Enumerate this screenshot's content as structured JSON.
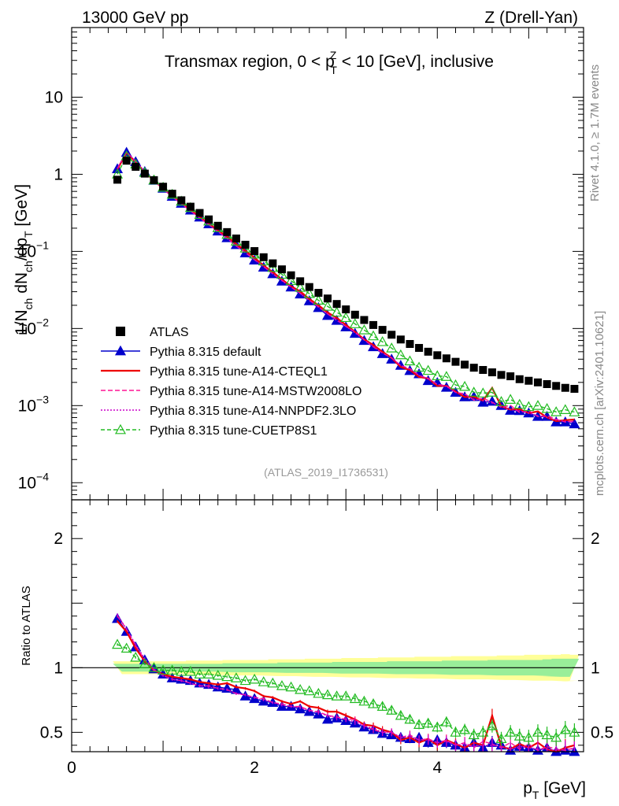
{
  "header": {
    "left": "13000 GeV pp",
    "right": "Z (Drell-Yan)"
  },
  "side_labels": {
    "rivet": "Rivet 4.1.0, ≥ 1.7M events",
    "mcplots": "mcplots.cern.ch [arXiv:2401.10621]"
  },
  "chart_data": {
    "type": "line",
    "title_main": "Transmax region, 0 < p",
    "title_sup": "Z",
    "title_sub": "T",
    "title_tail": " < 10 [GeV], inclusive",
    "analysis_tag": "(ATLAS_2019_I1736531)",
    "xlabel": "p",
    "xlabel_sub": "T",
    "xlabel_tail": " [GeV]",
    "ylabel_prefix": "1/N",
    "ylabel_sub1": "ch",
    "ylabel_mid": " dN",
    "ylabel_sub2": "ch",
    "ylabel_mid2": "/dp",
    "ylabel_sub3": "T",
    "ylabel_tail": " [GeV]",
    "ratio_ylabel": "Ratio to ATLAS",
    "xlim": [
      0,
      5.6
    ],
    "ylim_main": [
      6e-05,
      80
    ],
    "ylim_ratio": [
      0.35,
      2.3
    ],
    "x_ticks": [
      "0",
      "2",
      "4"
    ],
    "x_tick_values": [
      0,
      2,
      4
    ],
    "y_ticks_main": [
      {
        "base": "10",
        "exp": "",
        "value": 10
      },
      {
        "base": "1",
        "exp": "",
        "value": 1
      },
      {
        "base": "10",
        "exp": "−1",
        "value": 0.1
      },
      {
        "base": "10",
        "exp": "−2",
        "value": 0.01
      },
      {
        "base": "10",
        "exp": "−3",
        "value": 0.001
      },
      {
        "base": "10",
        "exp": "−4",
        "value": 0.0001
      }
    ],
    "y_ticks_ratio": [
      "0.5",
      "1",
      "2"
    ],
    "y_tick_values_ratio": [
      0.5,
      1,
      2
    ],
    "x": [
      0.5,
      0.6,
      0.7,
      0.8,
      0.9,
      1.0,
      1.1,
      1.2,
      1.3,
      1.4,
      1.5,
      1.6,
      1.7,
      1.8,
      1.9,
      2.0,
      2.1,
      2.2,
      2.3,
      2.4,
      2.5,
      2.6,
      2.7,
      2.8,
      2.9,
      3.0,
      3.1,
      3.2,
      3.3,
      3.4,
      3.5,
      3.6,
      3.7,
      3.8,
      3.9,
      4.0,
      4.1,
      4.2,
      4.3,
      4.4,
      4.5,
      4.6,
      4.7,
      4.8,
      4.9,
      5.0,
      5.1,
      5.2,
      5.3,
      5.4,
      5.5
    ],
    "atlas": [
      0.85,
      1.5,
      1.25,
      1.02,
      0.84,
      0.69,
      0.56,
      0.46,
      0.38,
      0.315,
      0.26,
      0.215,
      0.178,
      0.147,
      0.122,
      0.101,
      0.084,
      0.07,
      0.0585,
      0.049,
      0.041,
      0.0345,
      0.029,
      0.0245,
      0.0208,
      0.0177,
      0.0151,
      0.0129,
      0.0111,
      0.0096,
      0.0083,
      0.0072,
      0.0063,
      0.0056,
      0.005,
      0.0045,
      0.0041,
      0.0037,
      0.0034,
      0.0031,
      0.0029,
      0.0027,
      0.0025,
      0.0024,
      0.0022,
      0.0021,
      0.002,
      0.0019,
      0.0018,
      0.0017,
      0.00165
    ],
    "ratio_band_inner": [
      0.03,
      0.03,
      0.03,
      0.03,
      0.03,
      0.03,
      0.03,
      0.03,
      0.03,
      0.03,
      0.03,
      0.03,
      0.035,
      0.035,
      0.035,
      0.035,
      0.035,
      0.035,
      0.04,
      0.04,
      0.04,
      0.04,
      0.04,
      0.04,
      0.045,
      0.045,
      0.045,
      0.045,
      0.045,
      0.045,
      0.05,
      0.05,
      0.05,
      0.05,
      0.05,
      0.05,
      0.055,
      0.055,
      0.055,
      0.055,
      0.055,
      0.06,
      0.06,
      0.06,
      0.06,
      0.06,
      0.06,
      0.065,
      0.07,
      0.07,
      0.07
    ],
    "ratio_band_outer": [
      0.05,
      0.05,
      0.05,
      0.05,
      0.05,
      0.05,
      0.05,
      0.05,
      0.055,
      0.055,
      0.055,
      0.055,
      0.06,
      0.06,
      0.06,
      0.06,
      0.06,
      0.065,
      0.065,
      0.065,
      0.065,
      0.07,
      0.07,
      0.07,
      0.07,
      0.075,
      0.075,
      0.075,
      0.075,
      0.08,
      0.08,
      0.08,
      0.08,
      0.085,
      0.085,
      0.085,
      0.085,
      0.09,
      0.09,
      0.09,
      0.09,
      0.09,
      0.095,
      0.095,
      0.095,
      0.1,
      0.1,
      0.1,
      0.1,
      0.105,
      0.1
    ],
    "series": [
      {
        "name": "Pythia 8.315 default",
        "color": "#0000cc",
        "dash": "",
        "marker": "triangle-filled",
        "ratio": [
          1.38,
          1.28,
          1.16,
          1.06,
          0.99,
          0.95,
          0.92,
          0.91,
          0.9,
          0.88,
          0.87,
          0.85,
          0.84,
          0.83,
          0.78,
          0.76,
          0.74,
          0.73,
          0.7,
          0.7,
          0.68,
          0.66,
          0.64,
          0.6,
          0.61,
          0.59,
          0.57,
          0.54,
          0.52,
          0.49,
          0.48,
          0.46,
          0.45,
          0.46,
          0.42,
          0.44,
          0.42,
          0.4,
          0.38,
          0.42,
          0.38,
          0.42,
          0.4,
          0.36,
          0.39,
          0.38,
          0.36,
          0.38,
          0.34,
          0.36,
          0.35
        ]
      },
      {
        "name": "Pythia 8.315 tune-A14-CTEQL1",
        "color": "#ee0000",
        "dash": "",
        "marker": "none",
        "ratio": [
          1.36,
          1.28,
          1.15,
          1.05,
          0.98,
          0.95,
          0.93,
          0.92,
          0.91,
          0.89,
          0.88,
          0.87,
          0.88,
          0.85,
          0.84,
          0.82,
          0.78,
          0.77,
          0.74,
          0.72,
          0.74,
          0.7,
          0.69,
          0.66,
          0.66,
          0.63,
          0.6,
          0.56,
          0.55,
          0.52,
          0.5,
          0.44,
          0.46,
          0.42,
          0.45,
          0.4,
          0.44,
          0.41,
          0.38,
          0.42,
          0.4,
          0.63,
          0.39,
          0.37,
          0.41,
          0.38,
          0.42,
          0.37,
          0.35,
          0.38,
          0.4
        ]
      },
      {
        "name": "Pythia 8.315 tune-A14-MSTW2008LO",
        "color": "#ff1493",
        "dash": "6,3",
        "marker": "none",
        "ratio": [
          1.4,
          1.3,
          1.17,
          1.06,
          0.98,
          0.94,
          0.91,
          0.9,
          0.88,
          0.86,
          0.86,
          0.84,
          0.83,
          0.8,
          0.79,
          0.77,
          0.76,
          0.73,
          0.72,
          0.7,
          0.7,
          0.67,
          0.66,
          0.63,
          0.62,
          0.6,
          0.6,
          0.55,
          0.52,
          0.5,
          0.5,
          0.46,
          0.48,
          0.44,
          0.45,
          0.42,
          0.44,
          0.4,
          0.42,
          0.38,
          0.43,
          0.41,
          0.38,
          0.42,
          0.37,
          0.41,
          0.36,
          0.39,
          0.37,
          0.36,
          0.38
        ]
      },
      {
        "name": "Pythia 8.315 tune-A14-NNPDF2.3LO",
        "color": "#cc00cc",
        "dash": "2,2",
        "marker": "none",
        "ratio": [
          1.41,
          1.3,
          1.18,
          1.07,
          0.99,
          0.94,
          0.91,
          0.9,
          0.88,
          0.86,
          0.85,
          0.84,
          0.83,
          0.8,
          0.79,
          0.77,
          0.75,
          0.73,
          0.71,
          0.7,
          0.69,
          0.67,
          0.65,
          0.63,
          0.61,
          0.6,
          0.58,
          0.55,
          0.53,
          0.5,
          0.5,
          0.46,
          0.47,
          0.44,
          0.44,
          0.42,
          0.43,
          0.4,
          0.41,
          0.39,
          0.4,
          0.4,
          0.39,
          0.37,
          0.39,
          0.38,
          0.37,
          0.37,
          0.36,
          0.37,
          0.37
        ]
      },
      {
        "name": "Pythia 8.315 tune-CUETP8S1",
        "color": "#22bb22",
        "dash": "5,3",
        "marker": "triangle-open",
        "ratio": [
          1.18,
          1.15,
          1.08,
          1.03,
          1.0,
          0.98,
          0.98,
          0.97,
          0.97,
          0.95,
          0.95,
          0.94,
          0.93,
          0.92,
          0.9,
          0.91,
          0.89,
          0.88,
          0.86,
          0.85,
          0.83,
          0.82,
          0.8,
          0.79,
          0.78,
          0.78,
          0.76,
          0.74,
          0.72,
          0.7,
          0.67,
          0.63,
          0.6,
          0.56,
          0.57,
          0.54,
          0.58,
          0.5,
          0.52,
          0.48,
          0.5,
          0.55,
          0.45,
          0.5,
          0.47,
          0.46,
          0.5,
          0.48,
          0.46,
          0.52,
          0.5
        ]
      }
    ],
    "legend": [
      {
        "label": "ATLAS"
      },
      {
        "label": "Pythia 8.315 default"
      },
      {
        "label": "Pythia 8.315 tune-A14-CTEQL1"
      },
      {
        "label": "Pythia 8.315 tune-A14-MSTW2008LO"
      },
      {
        "label": "Pythia 8.315 tune-A14-NNPDF2.3LO"
      },
      {
        "label": "Pythia 8.315 tune-CUETP8S1"
      }
    ]
  }
}
